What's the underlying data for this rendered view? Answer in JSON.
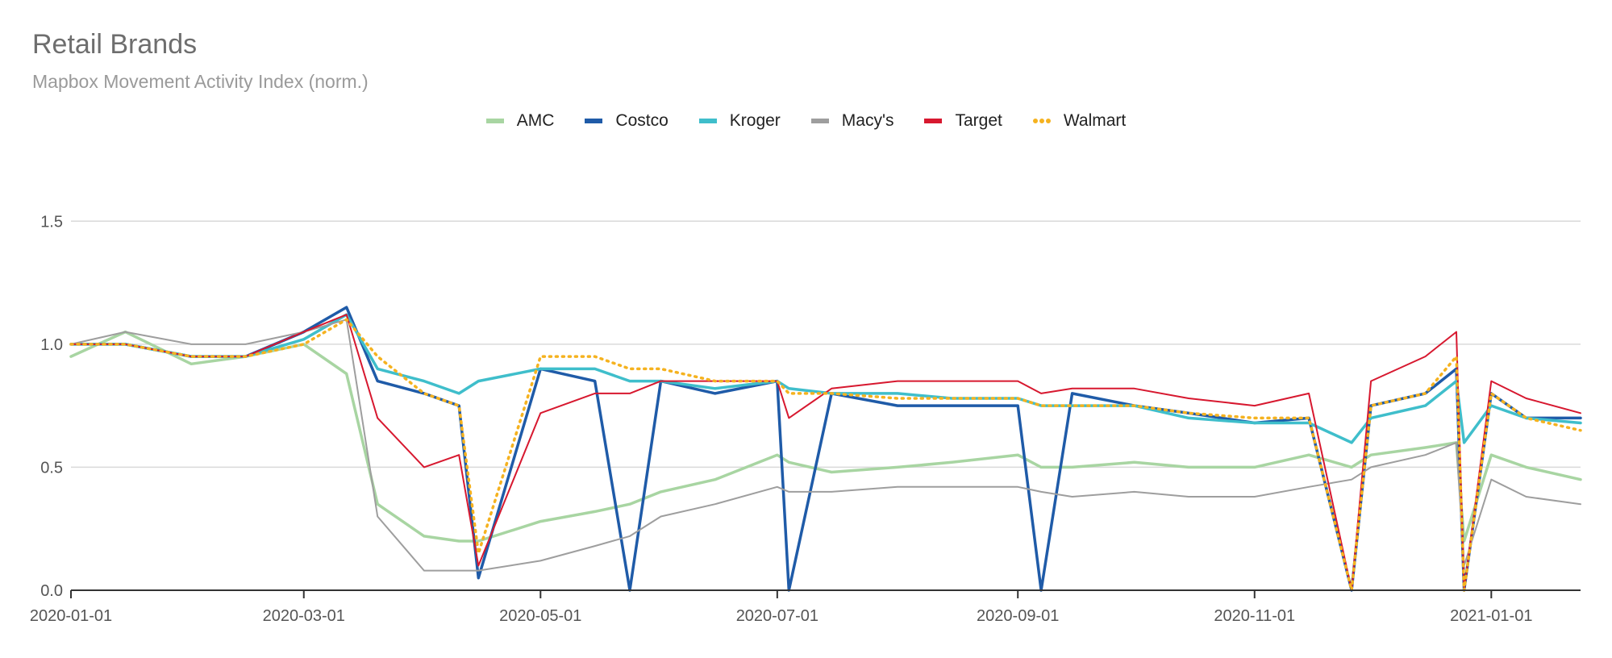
{
  "title": "Retail Brands",
  "subtitle": "Mapbox Movement Activity Index (norm.)",
  "chart_data": {
    "type": "line",
    "title": "Retail Brands",
    "subtitle": "Mapbox Movement Activity Index (norm.)",
    "xlabel": "",
    "ylabel": "",
    "x_range": [
      "2020-01-01",
      "2021-01-24"
    ],
    "ylim": [
      0,
      1.75
    ],
    "grid": true,
    "legend_position": "top-center",
    "y_ticks": [
      "0.0",
      "0.5",
      "1.0",
      "1.5"
    ],
    "x_ticks": [
      "2020-01-01",
      "2020-03-01",
      "2020-05-01",
      "2020-07-01",
      "2020-09-01",
      "2020-11-01",
      "2021-01-01"
    ],
    "x_sample_dates": [
      "2020-01-01",
      "2020-01-15",
      "2020-02-01",
      "2020-02-15",
      "2020-03-01",
      "2020-03-12",
      "2020-03-20",
      "2020-04-01",
      "2020-04-10",
      "2020-04-15",
      "2020-05-01",
      "2020-05-15",
      "2020-05-24",
      "2020-06-01",
      "2020-06-15",
      "2020-07-01",
      "2020-07-04",
      "2020-07-15",
      "2020-08-01",
      "2020-08-15",
      "2020-09-01",
      "2020-09-07",
      "2020-09-15",
      "2020-10-01",
      "2020-10-15",
      "2020-11-01",
      "2020-11-15",
      "2020-11-26",
      "2020-12-01",
      "2020-12-15",
      "2020-12-23",
      "2020-12-25",
      "2021-01-01",
      "2021-01-10",
      "2021-01-24"
    ],
    "series": [
      {
        "name": "AMC",
        "color": "#a8d5a2",
        "dashed": false,
        "width": 3.5,
        "values": [
          0.95,
          1.05,
          0.92,
          0.95,
          1.0,
          0.88,
          0.35,
          0.22,
          0.2,
          0.2,
          0.28,
          0.32,
          0.35,
          0.4,
          0.45,
          0.55,
          0.52,
          0.48,
          0.5,
          0.52,
          0.55,
          0.5,
          0.5,
          0.52,
          0.5,
          0.5,
          0.55,
          0.5,
          0.55,
          0.58,
          0.6,
          0.2,
          0.55,
          0.5,
          0.45
        ]
      },
      {
        "name": "Costco",
        "color": "#1f5ba8",
        "dashed": false,
        "width": 3.5,
        "values": [
          1.0,
          1.0,
          0.95,
          0.95,
          1.05,
          1.15,
          0.85,
          0.8,
          0.75,
          0.05,
          0.9,
          0.85,
          0.0,
          0.85,
          0.8,
          0.85,
          0.0,
          0.8,
          0.75,
          0.75,
          0.75,
          0.0,
          0.8,
          0.75,
          0.72,
          0.68,
          0.7,
          0.0,
          0.75,
          0.8,
          0.9,
          0.0,
          0.8,
          0.7,
          0.7
        ]
      },
      {
        "name": "Kroger",
        "color": "#3fbecb",
        "dashed": false,
        "width": 3.5,
        "values": [
          1.0,
          1.0,
          0.95,
          0.95,
          1.02,
          1.12,
          0.9,
          0.85,
          0.8,
          0.85,
          0.9,
          0.9,
          0.85,
          0.85,
          0.82,
          0.85,
          0.82,
          0.8,
          0.8,
          0.78,
          0.78,
          0.75,
          0.75,
          0.75,
          0.7,
          0.68,
          0.68,
          0.6,
          0.7,
          0.75,
          0.85,
          0.6,
          0.75,
          0.7,
          0.68
        ]
      },
      {
        "name": "Macy's",
        "color": "#9e9e9e",
        "dashed": false,
        "width": 2,
        "values": [
          1.0,
          1.05,
          1.0,
          1.0,
          1.05,
          1.1,
          0.3,
          0.08,
          0.08,
          0.08,
          0.12,
          0.18,
          0.22,
          0.3,
          0.35,
          0.42,
          0.4,
          0.4,
          0.42,
          0.42,
          0.42,
          0.4,
          0.38,
          0.4,
          0.38,
          0.38,
          0.42,
          0.45,
          0.5,
          0.55,
          0.6,
          0.1,
          0.45,
          0.38,
          0.35
        ]
      },
      {
        "name": "Target",
        "color": "#d7182f",
        "dashed": false,
        "width": 2,
        "values": [
          1.0,
          1.0,
          0.95,
          0.95,
          1.05,
          1.12,
          0.7,
          0.5,
          0.55,
          0.1,
          0.72,
          0.8,
          0.8,
          0.85,
          0.85,
          0.85,
          0.7,
          0.82,
          0.85,
          0.85,
          0.85,
          0.8,
          0.82,
          0.82,
          0.78,
          0.75,
          0.8,
          0.0,
          0.85,
          0.95,
          1.05,
          0.0,
          0.85,
          0.78,
          0.72
        ]
      },
      {
        "name": "Walmart",
        "color": "#f5b21f",
        "dashed": true,
        "width": 3.5,
        "values": [
          1.0,
          1.0,
          0.95,
          0.95,
          1.0,
          1.1,
          0.95,
          0.8,
          0.75,
          0.15,
          0.95,
          0.95,
          0.9,
          0.9,
          0.85,
          0.85,
          0.8,
          0.8,
          0.78,
          0.78,
          0.78,
          0.75,
          0.75,
          0.75,
          0.72,
          0.7,
          0.7,
          0.0,
          0.75,
          0.8,
          0.95,
          0.0,
          0.8,
          0.7,
          0.65
        ]
      }
    ]
  }
}
